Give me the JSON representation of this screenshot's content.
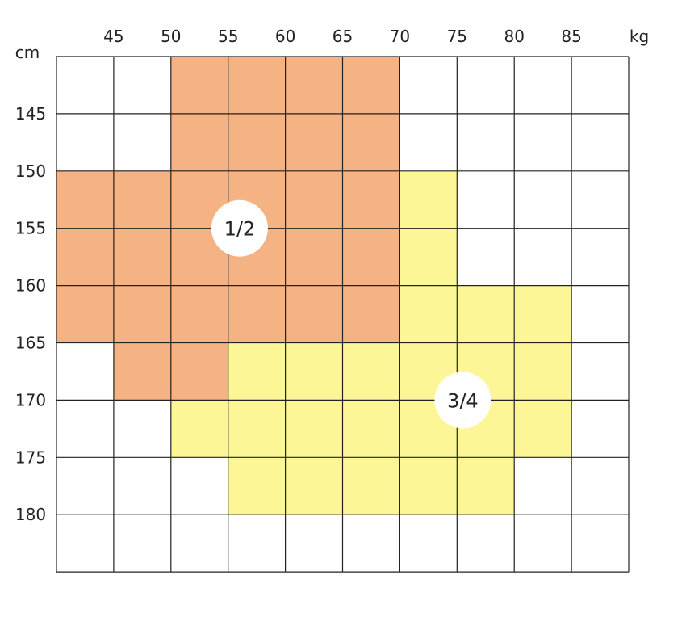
{
  "chart_data": {
    "type": "heatmap",
    "x_unit": "kg",
    "y_unit": "cm",
    "x_ticks": [
      "45",
      "50",
      "55",
      "60",
      "65",
      "70",
      "75",
      "80",
      "85"
    ],
    "y_ticks": [
      "145",
      "150",
      "155",
      "160",
      "165",
      "170",
      "175",
      "180"
    ],
    "x_range": [
      40,
      90
    ],
    "y_range": [
      140,
      185
    ],
    "zones": [
      {
        "label": "1/2",
        "color": "#f5b283",
        "label_at": {
          "weight": 56,
          "height": 155
        },
        "cells": [
          [
            50,
            140
          ],
          [
            55,
            140
          ],
          [
            60,
            140
          ],
          [
            65,
            140
          ],
          [
            50,
            145
          ],
          [
            55,
            145
          ],
          [
            60,
            145
          ],
          [
            65,
            145
          ],
          [
            40,
            150
          ],
          [
            45,
            150
          ],
          [
            50,
            150
          ],
          [
            55,
            150
          ],
          [
            60,
            150
          ],
          [
            65,
            150
          ],
          [
            40,
            155
          ],
          [
            45,
            155
          ],
          [
            50,
            155
          ],
          [
            55,
            155
          ],
          [
            60,
            155
          ],
          [
            65,
            155
          ],
          [
            40,
            160
          ],
          [
            45,
            160
          ],
          [
            50,
            160
          ],
          [
            55,
            160
          ],
          [
            60,
            160
          ],
          [
            65,
            160
          ],
          [
            45,
            165
          ],
          [
            50,
            165
          ]
        ]
      },
      {
        "label": "3/4",
        "color": "#fdf697",
        "label_at": {
          "weight": 75.5,
          "height": 170
        },
        "cells": [
          [
            70,
            150
          ],
          [
            70,
            155
          ],
          [
            70,
            160
          ],
          [
            75,
            160
          ],
          [
            80,
            160
          ],
          [
            55,
            165
          ],
          [
            60,
            165
          ],
          [
            65,
            165
          ],
          [
            70,
            165
          ],
          [
            75,
            165
          ],
          [
            80,
            165
          ],
          [
            50,
            170
          ],
          [
            55,
            170
          ],
          [
            60,
            170
          ],
          [
            65,
            170
          ],
          [
            70,
            170
          ],
          [
            75,
            170
          ],
          [
            80,
            170
          ],
          [
            55,
            175
          ],
          [
            60,
            175
          ],
          [
            65,
            175
          ],
          [
            70,
            175
          ],
          [
            75,
            175
          ]
        ]
      }
    ]
  }
}
